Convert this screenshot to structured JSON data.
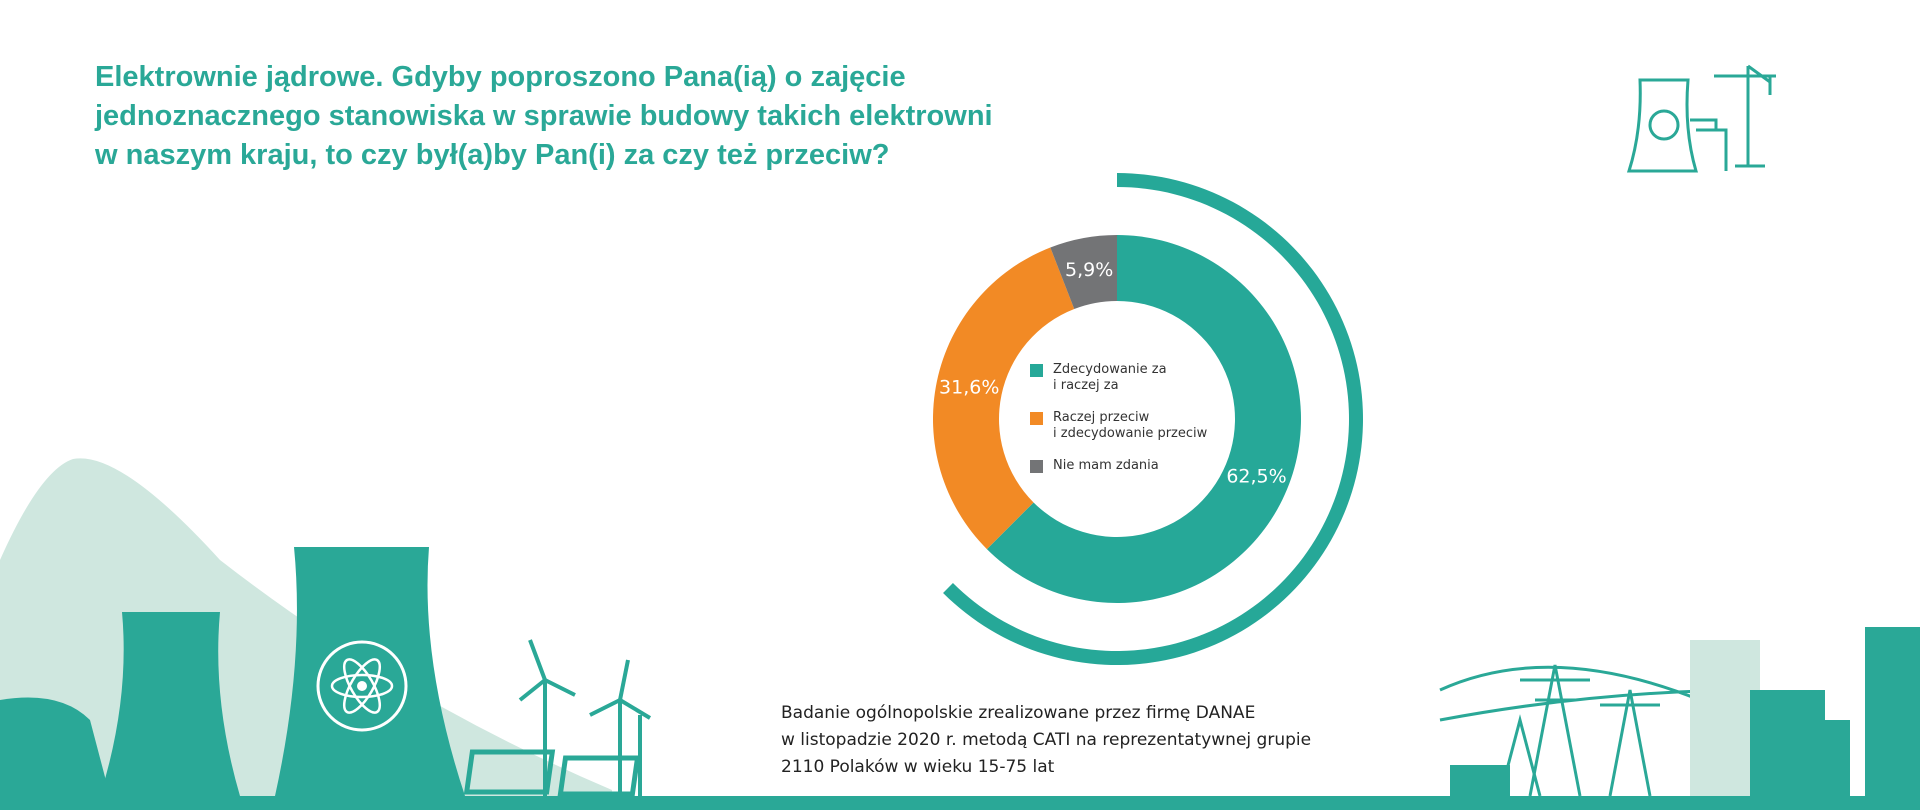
{
  "chart_data": {
    "type": "donut",
    "title": "Elektrownie jądrowe. Gdyby poproszono Pana(ią) o zajęcie\njednoznacznego stanowiska w sprawie budowy takich elektrowni\nw naszym kraju, to czy był(a)by Pan(i) za czy też przeciw?",
    "categories": [
      "Zdecydowanie za\ni raczej za",
      "Raczej przeciw\ni zdecydowanie przeciw",
      "Nie mam zdania"
    ],
    "values": [
      62.5,
      31.6,
      5.9
    ],
    "value_labels": [
      "62,5%",
      "31,6%",
      "5,9%"
    ],
    "colors": [
      "#26a898",
      "#f28a25",
      "#737476"
    ],
    "note": "Badanie ogólnopolskie zrealizowane przez firmę DANAE\nw listopadzie 2020 r. metodą CATI na reprezentatywnej grupie\n2110 Polaków w wieku 15-75 lat"
  }
}
